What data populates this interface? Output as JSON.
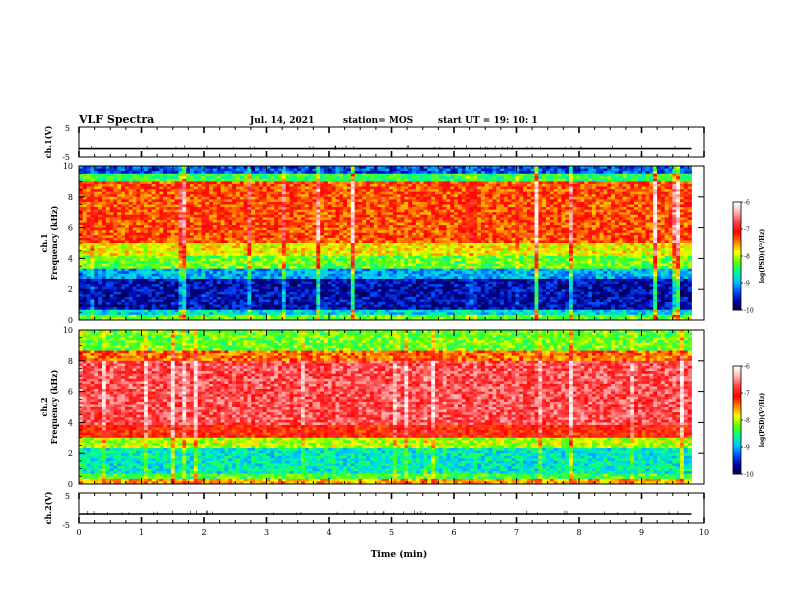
{
  "header": {
    "title": "VLF Spectra",
    "date": "Jul. 14, 2021",
    "station": "station= MOS",
    "start": "start UT =  19: 10: 1"
  },
  "colors": {
    "background": "#ffffff",
    "frame": "#000000",
    "trace": "#000000",
    "colormap": [
      "#000040",
      "#0000a0",
      "#0050ff",
      "#00c8ff",
      "#00ff90",
      "#60ff00",
      "#ffff00",
      "#ff8000",
      "#ff0000",
      "#ff4040",
      "#ffb0b0",
      "#ffffff"
    ]
  },
  "chart_data": [
    {
      "type": "line",
      "panel": "ch1-waveform",
      "ylabel": "ch.1(V)",
      "ylim": [
        -5,
        5
      ],
      "yticks": [
        "5",
        "-5"
      ],
      "xlim": [
        0,
        10
      ],
      "x": [
        0,
        9.8
      ],
      "values": [
        -2.2,
        -2.2
      ]
    },
    {
      "type": "heatmap",
      "panel": "ch1-spectrogram",
      "ylabel_lines": [
        "ch.1",
        "Frequency (kHz)"
      ],
      "ylim": [
        0,
        10
      ],
      "yticks": [
        "0",
        "2",
        "4",
        "6",
        "8",
        "10"
      ],
      "xlim": [
        0,
        9.8
      ],
      "bands_khz": [
        {
          "from": 0.0,
          "to": 0.4,
          "level": -8.2
        },
        {
          "from": 0.4,
          "to": 0.7,
          "level": -8.8
        },
        {
          "from": 0.7,
          "to": 2.6,
          "level": -9.6
        },
        {
          "from": 2.6,
          "to": 3.4,
          "level": -9.0
        },
        {
          "from": 3.4,
          "to": 4.2,
          "level": -8.2
        },
        {
          "from": 4.2,
          "to": 5.0,
          "level": -7.8
        },
        {
          "from": 5.0,
          "to": 9.0,
          "level": -7.3
        },
        {
          "from": 9.0,
          "to": 9.5,
          "level": -8.4
        },
        {
          "from": 9.5,
          "to": 10.0,
          "level": -9.3
        }
      ],
      "colorbar": {
        "label": "log(PSD)(V²/Hz)",
        "range": [
          -10,
          -6
        ],
        "ticks": [
          "-6",
          "-7",
          "-8",
          "-9",
          "-10"
        ]
      }
    },
    {
      "type": "heatmap",
      "panel": "ch2-spectrogram",
      "ylabel_lines": [
        "ch.2",
        "Frequency (kHz)"
      ],
      "ylim": [
        0,
        10
      ],
      "yticks": [
        "0",
        "2",
        "4",
        "6",
        "8",
        "10"
      ],
      "xlim": [
        0,
        9.8
      ],
      "bands_khz": [
        {
          "from": 0.0,
          "to": 0.3,
          "level": -7.6
        },
        {
          "from": 0.3,
          "to": 0.6,
          "level": -8.3
        },
        {
          "from": 0.6,
          "to": 2.4,
          "level": -8.7
        },
        {
          "from": 2.4,
          "to": 3.0,
          "level": -8.0
        },
        {
          "from": 3.0,
          "to": 3.8,
          "level": -7.1
        },
        {
          "from": 3.8,
          "to": 8.0,
          "level": -6.7
        },
        {
          "from": 8.0,
          "to": 8.6,
          "level": -7.4
        },
        {
          "from": 8.6,
          "to": 10.0,
          "level": -8.2
        }
      ],
      "colorbar": {
        "label": "log(PSD)(V²/Hz)",
        "range": [
          -10,
          -6
        ],
        "ticks": [
          "-6",
          "-7",
          "-8",
          "-9",
          "-10"
        ]
      }
    },
    {
      "type": "line",
      "panel": "ch2-waveform",
      "ylabel": "ch.2(V)",
      "ylim": [
        -5,
        5
      ],
      "yticks": [
        "5",
        "-5"
      ],
      "xlim": [
        0,
        10
      ],
      "x": [
        0,
        9.8
      ],
      "values": [
        -2.0,
        -2.0
      ],
      "xlabel": "Time (min)",
      "xticks": [
        "0",
        "1",
        "2",
        "3",
        "4",
        "5",
        "6",
        "7",
        "8",
        "9",
        "10"
      ]
    }
  ]
}
